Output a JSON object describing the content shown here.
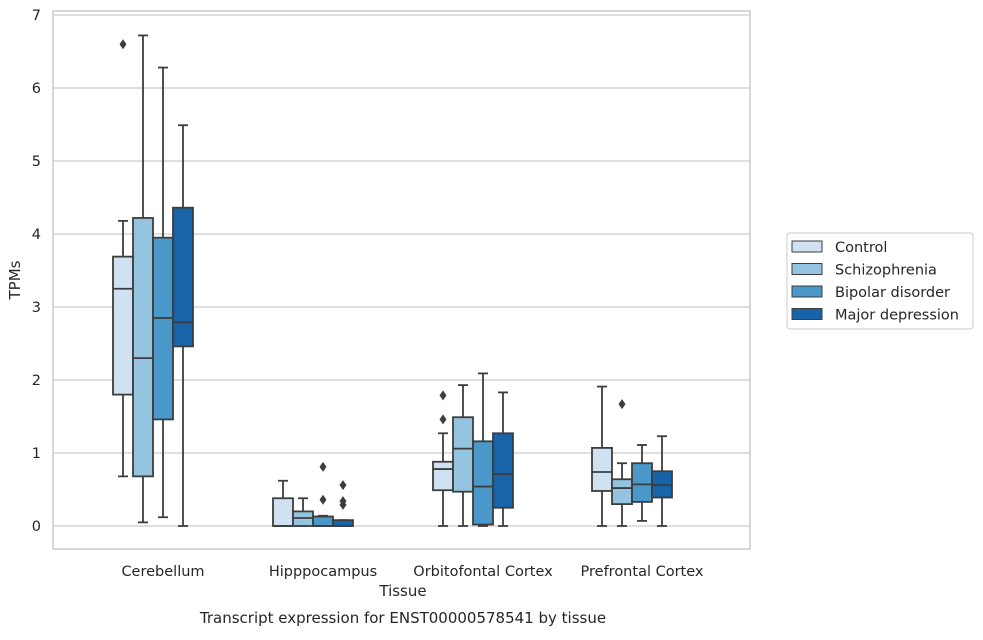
{
  "caption": "Transcript expression for ENST00000578541 by tissue",
  "chart_data": {
    "type": "box",
    "xlabel": "Tissue",
    "ylabel": "TPMs",
    "ylim": [
      -0.32,
      7.07
    ],
    "yticks": [
      0,
      1,
      2,
      3,
      4,
      5,
      6,
      7
    ],
    "grid": "horizontal",
    "legend_position": "right",
    "categories": [
      "Cerebellum",
      "Hipppocampus",
      "Orbitofontal Cortex",
      "Prefrontal Cortex"
    ],
    "series": [
      {
        "name": "Control",
        "color": "#d0e1f2",
        "boxes": [
          {
            "whislo": 0.68,
            "q1": 1.8,
            "med": 3.25,
            "q3": 3.69,
            "whishi": 4.18,
            "fliers": [
              6.6
            ]
          },
          {
            "whislo": 0.0,
            "q1": 0.0,
            "med": 0.0,
            "q3": 0.38,
            "whishi": 0.62,
            "fliers": []
          },
          {
            "whislo": 0.0,
            "q1": 0.49,
            "med": 0.78,
            "q3": 0.88,
            "whishi": 1.27,
            "fliers": [
              1.46,
              1.79
            ]
          },
          {
            "whislo": 0.0,
            "q1": 0.48,
            "med": 0.74,
            "q3": 1.07,
            "whishi": 1.91,
            "fliers": []
          }
        ]
      },
      {
        "name": "Schizophrenia",
        "color": "#94c4df",
        "boxes": [
          {
            "whislo": 0.05,
            "q1": 0.68,
            "med": 2.3,
            "q3": 4.22,
            "whishi": 6.72,
            "fliers": []
          },
          {
            "whislo": 0.0,
            "q1": 0.0,
            "med": 0.11,
            "q3": 0.2,
            "whishi": 0.38,
            "fliers": []
          },
          {
            "whislo": 0.0,
            "q1": 0.47,
            "med": 1.06,
            "q3": 1.49,
            "whishi": 1.93,
            "fliers": []
          },
          {
            "whislo": 0.0,
            "q1": 0.3,
            "med": 0.52,
            "q3": 0.64,
            "whishi": 0.86,
            "fliers": [
              1.67
            ]
          }
        ]
      },
      {
        "name": "Bipolar disorder",
        "color": "#4a98c9",
        "boxes": [
          {
            "whislo": 0.12,
            "q1": 1.46,
            "med": 2.85,
            "q3": 3.95,
            "whishi": 6.28,
            "fliers": []
          },
          {
            "whislo": 0.0,
            "q1": 0.0,
            "med": 0.0,
            "q3": 0.13,
            "whishi": 0.14,
            "fliers": [
              0.36,
              0.81
            ]
          },
          {
            "whislo": 0.0,
            "q1": 0.02,
            "med": 0.54,
            "q3": 1.16,
            "whishi": 2.09,
            "fliers": []
          },
          {
            "whislo": 0.07,
            "q1": 0.33,
            "med": 0.57,
            "q3": 0.86,
            "whishi": 1.11,
            "fliers": []
          }
        ]
      },
      {
        "name": "Major depression",
        "color": "#1764ab",
        "boxes": [
          {
            "whislo": 0.0,
            "q1": 2.46,
            "med": 2.79,
            "q3": 4.36,
            "whishi": 5.49,
            "fliers": []
          },
          {
            "whislo": 0.0,
            "q1": 0.0,
            "med": 0.0,
            "q3": 0.08,
            "whishi": 0.08,
            "fliers": [
              0.29,
              0.34,
              0.56
            ]
          },
          {
            "whislo": 0.0,
            "q1": 0.25,
            "med": 0.71,
            "q3": 1.27,
            "whishi": 1.83,
            "fliers": []
          },
          {
            "whislo": 0.0,
            "q1": 0.39,
            "med": 0.56,
            "q3": 0.75,
            "whishi": 1.23,
            "fliers": []
          }
        ]
      }
    ]
  }
}
